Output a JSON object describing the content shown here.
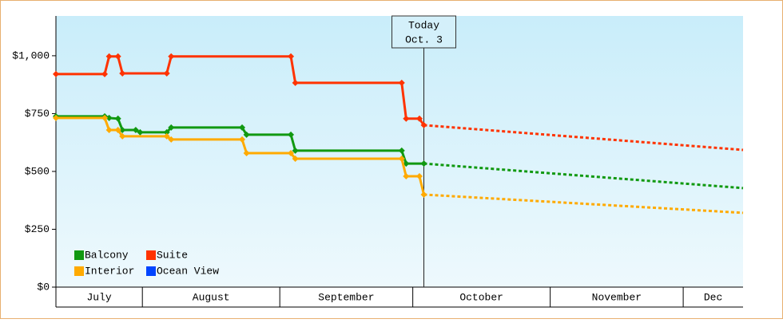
{
  "chart_data": {
    "type": "line",
    "ylim": [
      0,
      1172
    ],
    "yticks": [
      {
        "value": 0,
        "label": "$0"
      },
      {
        "value": 250,
        "label": "$250"
      },
      {
        "value": 500,
        "label": "$500"
      },
      {
        "value": 750,
        "label": "$750"
      },
      {
        "value": 1000,
        "label": "$1,000"
      }
    ],
    "xlim": [
      0,
      155
    ],
    "months": [
      {
        "label": "July",
        "start": 0,
        "end": 19.5
      },
      {
        "label": "August",
        "start": 19.5,
        "end": 50.5
      },
      {
        "label": "September",
        "start": 50.5,
        "end": 80.5
      },
      {
        "label": "October",
        "start": 80.5,
        "end": 111.5
      },
      {
        "label": "November",
        "start": 111.5,
        "end": 141.5
      },
      {
        "label": "Dec",
        "start": 141.5,
        "end": 155
      }
    ],
    "today": {
      "x": 83,
      "label": "Today",
      "date": "Oct. 3"
    },
    "series": [
      {
        "name": "Balcony",
        "color": "#119911",
        "x": [
          0,
          11,
          12,
          14,
          15,
          18,
          19,
          25,
          26,
          42,
          43,
          53,
          54,
          78,
          79,
          83,
          155
        ],
        "values": [
          738,
          738,
          731,
          728,
          679,
          679,
          669,
          669,
          690,
          690,
          659,
          659,
          590,
          590,
          534,
          534,
          428
        ]
      },
      {
        "name": "Suite",
        "color": "#ff3300",
        "x": [
          0,
          11,
          12,
          14,
          15,
          25,
          26,
          53,
          54,
          78,
          79,
          82,
          83,
          155
        ],
        "values": [
          921,
          921,
          997,
          997,
          924,
          924,
          997,
          997,
          883,
          883,
          728,
          728,
          700,
          593
        ]
      },
      {
        "name": "Interior",
        "color": "#ffaa00",
        "x": [
          0,
          11,
          12,
          14,
          15,
          25,
          26,
          42,
          43,
          53,
          54,
          78,
          79,
          82,
          83,
          155
        ],
        "values": [
          731,
          731,
          679,
          679,
          652,
          652,
          638,
          638,
          579,
          579,
          555,
          555,
          479,
          479,
          400,
          321
        ]
      },
      {
        "name": "Ocean View",
        "color": "#0044ff",
        "x": [],
        "values": []
      }
    ]
  }
}
